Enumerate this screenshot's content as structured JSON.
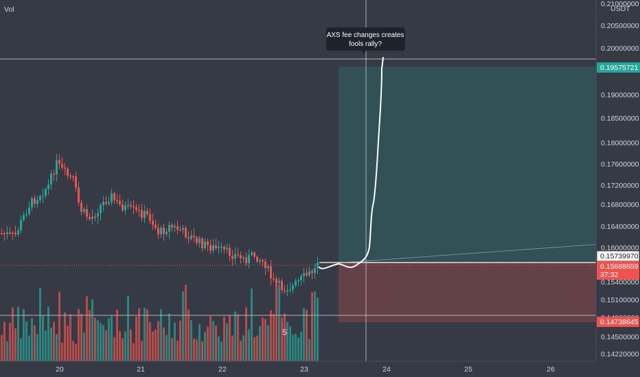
{
  "panel": {
    "vol_label": "Vol",
    "currency": "USDT"
  },
  "price_axis": {
    "labels": [
      "0.21000000",
      "0.20500000",
      "0.20000000",
      "0.19000000",
      "0.18500000",
      "0.18000000",
      "0.17600000",
      "0.17200000",
      "0.16800000",
      "0.16400000",
      "0.16000000",
      "0.15400000",
      "0.15100000",
      "0.14800000",
      "0.14500000",
      "0.14220000"
    ]
  },
  "time_axis": {
    "labels": [
      "20",
      "21",
      "22",
      "23",
      "24",
      "25",
      "26"
    ]
  },
  "price_tags": {
    "target": "0.19575721",
    "entry": "0.15739970",
    "current": "0.15688659",
    "countdown": "37:32",
    "stop": "0.14738645"
  },
  "annotation": {
    "line1": "AXS fee changes creates",
    "line2": "fools rally?"
  },
  "marker": {
    "text": "5"
  },
  "colors": {
    "background": "#363a45",
    "up": "#26a69a",
    "down": "#ef5350",
    "target_tag": "#26a69a",
    "stop_tag": "#ef5350",
    "profit_zone": "#26a69a",
    "loss_zone": "#ef5350"
  }
}
